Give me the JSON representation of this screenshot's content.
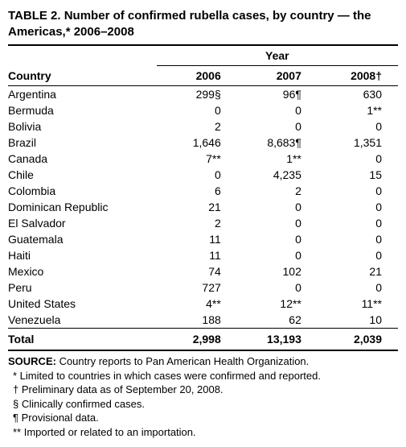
{
  "title": "TABLE 2. Number of confirmed rubella cases, by country — the Americas,* 2006–2008",
  "headers": {
    "year_span": "Year",
    "country": "Country",
    "y2006": "2006",
    "y2007": "2007",
    "y2008": "2008†"
  },
  "rows": [
    {
      "country": "Argentina",
      "y2006": "299§",
      "y2007": "96¶",
      "y2008": "630"
    },
    {
      "country": "Bermuda",
      "y2006": "0",
      "y2007": "0",
      "y2008": "1**"
    },
    {
      "country": "Bolivia",
      "y2006": "2",
      "y2007": "0",
      "y2008": "0"
    },
    {
      "country": "Brazil",
      "y2006": "1,646",
      "y2007": "8,683¶",
      "y2008": "1,351"
    },
    {
      "country": "Canada",
      "y2006": "7**",
      "y2007": "1**",
      "y2008": "0"
    },
    {
      "country": "Chile",
      "y2006": "0",
      "y2007": "4,235",
      "y2008": "15"
    },
    {
      "country": "Colombia",
      "y2006": "6",
      "y2007": "2",
      "y2008": "0"
    },
    {
      "country": "Dominican Republic",
      "y2006": "21",
      "y2007": "0",
      "y2008": "0"
    },
    {
      "country": "El Salvador",
      "y2006": "2",
      "y2007": "0",
      "y2008": "0"
    },
    {
      "country": "Guatemala",
      "y2006": "11",
      "y2007": "0",
      "y2008": "0"
    },
    {
      "country": "Haiti",
      "y2006": "11",
      "y2007": "0",
      "y2008": "0"
    },
    {
      "country": "Mexico",
      "y2006": "74",
      "y2007": "102",
      "y2008": "21"
    },
    {
      "country": "Peru",
      "y2006": "727",
      "y2007": "0",
      "y2008": "0"
    },
    {
      "country": "United States",
      "y2006": "4**",
      "y2007": "12**",
      "y2008": "11**"
    },
    {
      "country": "Venezuela",
      "y2006": "188",
      "y2007": "62",
      "y2008": "10"
    }
  ],
  "total": {
    "label": "Total",
    "y2006": "2,998",
    "y2007": "13,193",
    "y2008": "2,039"
  },
  "footnotes": {
    "source_label": "SOURCE:",
    "source_text": " Country reports to Pan American Health Organization.",
    "star": "* Limited to countries in which cases were confirmed and reported.",
    "dagger": "† Preliminary data as of September 20, 2008.",
    "section": "§ Clinically confirmed cases.",
    "pilcrow": "¶ Provisional data.",
    "dblstar": "** Imported or related to an importation."
  },
  "styling": {
    "font_family": "Arial, Helvetica, sans-serif",
    "title_fontsize": 15,
    "body_fontsize": 14,
    "footnote_fontsize": 13,
    "text_color": "#000000",
    "background_color": "#ffffff",
    "rule_heavy": 2,
    "rule_light": 1.5,
    "column_widths_pct": [
      38,
      20.6,
      20.6,
      20.6
    ]
  }
}
